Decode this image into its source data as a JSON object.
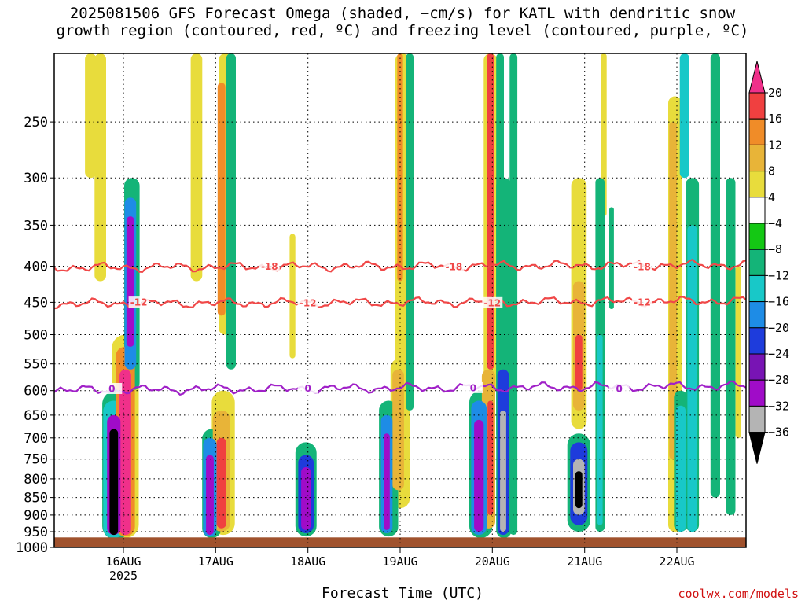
{
  "chart_data": {
    "type": "heatmap",
    "title": "2025081506 GFS Forecast Omega (shaded, −cm/s) for KATL with dendritic snow\ngrowth region (contoured, red, ºC) and freezing level (contoured, purple, ºC)",
    "xlabel": "Forecast Time (UTC)",
    "ylabel": "",
    "credit": "coolwx.com/models",
    "y_axis": {
      "scale": "pressure (hPa), inverted",
      "ticks": [
        250,
        300,
        350,
        400,
        450,
        500,
        550,
        600,
        650,
        700,
        750,
        800,
        850,
        900,
        950,
        1000
      ],
      "range": [
        200,
        1000
      ]
    },
    "x_axis": {
      "ticks": [
        {
          "label": "16AUG",
          "sub": "2025",
          "hour": 18
        },
        {
          "label": "17AUG",
          "sub": "",
          "hour": 42
        },
        {
          "label": "18AUG",
          "sub": "",
          "hour": 66
        },
        {
          "label": "19AUG",
          "sub": "",
          "hour": 90
        },
        {
          "label": "20AUG",
          "sub": "",
          "hour": 114
        },
        {
          "label": "21AUG",
          "sub": "",
          "hour": 138
        },
        {
          "label": "22AUG",
          "sub": "",
          "hour": 162
        }
      ],
      "range_hours": [
        0,
        180
      ]
    },
    "colorbar": {
      "labels": [
        "20",
        "16",
        "12",
        "8",
        "4",
        "−4",
        "−8",
        "−12",
        "−16",
        "−20",
        "−24",
        "−28",
        "−32",
        "−36"
      ],
      "colors": [
        "#f0308a",
        "#f04040",
        "#f08c28",
        "#e8b438",
        "#e8dc3c",
        "#ffffff",
        "#14c814",
        "#14b478",
        "#18c8c8",
        "#1e8ce6",
        "#1e3cdc",
        "#7814b4",
        "#a00cc8",
        "#b4b4b4",
        "#000000"
      ]
    },
    "contours": [
      {
        "label": "-18",
        "color": "#f04848",
        "pressure": 400,
        "label_hours": [
          56,
          104,
          153
        ]
      },
      {
        "label": "-12",
        "color": "#f04848",
        "pressure": 450,
        "label_hours": [
          22,
          66,
          114,
          153
        ]
      },
      {
        "label": "0",
        "color": "#a020c8",
        "pressure": 595,
        "label_hours": [
          15,
          66,
          109,
          147
        ]
      }
    ],
    "ground_color": "#a0522d",
    "cells": [
      {
        "hour": 15.5,
        "p1": 680,
        "p2": 960,
        "w": 2.2,
        "v": -36
      },
      {
        "hour": 15.5,
        "p1": 650,
        "p2": 960,
        "w": 3.5,
        "v": -28
      },
      {
        "hour": 15.5,
        "p1": 620,
        "p2": 970,
        "w": 5.5,
        "v": -12
      },
      {
        "hour": 16.0,
        "p1": 600,
        "p2": 975,
        "w": 7,
        "v": -8
      },
      {
        "hour": 18.5,
        "p1": 560,
        "p2": 960,
        "w": 3,
        "v": 20
      },
      {
        "hour": 18.5,
        "p1": 520,
        "p2": 965,
        "w": 5,
        "v": 12
      },
      {
        "hour": 18.5,
        "p1": 500,
        "p2": 970,
        "w": 7,
        "v": 4
      },
      {
        "hour": 19.8,
        "p1": 340,
        "p2": 520,
        "w": 2,
        "v": -28
      },
      {
        "hour": 19.8,
        "p1": 320,
        "p2": 560,
        "w": 3,
        "v": -16
      },
      {
        "hour": 20.2,
        "p1": 300,
        "p2": 600,
        "w": 4,
        "v": -8
      },
      {
        "hour": 12.0,
        "p1": 200,
        "p2": 420,
        "w": 3,
        "v": 4
      },
      {
        "hour": 9.5,
        "p1": 200,
        "p2": 300,
        "w": 3,
        "v": 4
      },
      {
        "hour": 40.5,
        "p1": 740,
        "p2": 960,
        "w": 2,
        "v": -28
      },
      {
        "hour": 40.5,
        "p1": 700,
        "p2": 965,
        "w": 3.5,
        "v": -16
      },
      {
        "hour": 41.0,
        "p1": 680,
        "p2": 970,
        "w": 5,
        "v": -8
      },
      {
        "hour": 43.5,
        "p1": 700,
        "p2": 940,
        "w": 2.5,
        "v": 16
      },
      {
        "hour": 43.5,
        "p1": 640,
        "p2": 950,
        "w": 4.5,
        "v": 8
      },
      {
        "hour": 44.0,
        "p1": 600,
        "p2": 960,
        "w": 6,
        "v": 4
      },
      {
        "hour": 43.5,
        "p1": 220,
        "p2": 470,
        "w": 2,
        "v": 12
      },
      {
        "hour": 44.5,
        "p1": 200,
        "p2": 500,
        "w": 3.5,
        "v": 4
      },
      {
        "hour": 46.0,
        "p1": 200,
        "p2": 560,
        "w": 2.5,
        "v": -8
      },
      {
        "hour": 37.0,
        "p1": 200,
        "p2": 420,
        "w": 3,
        "v": 4
      },
      {
        "hour": 65.5,
        "p1": 770,
        "p2": 945,
        "w": 2.5,
        "v": -28
      },
      {
        "hour": 65.5,
        "p1": 740,
        "p2": 955,
        "w": 4,
        "v": -20
      },
      {
        "hour": 65.5,
        "p1": 710,
        "p2": 965,
        "w": 5.5,
        "v": -8
      },
      {
        "hour": 62.0,
        "p1": 360,
        "p2": 540,
        "w": 1.5,
        "v": 4
      },
      {
        "hour": 86.5,
        "p1": 690,
        "p2": 945,
        "w": 1.6,
        "v": -28
      },
      {
        "hour": 86.5,
        "p1": 650,
        "p2": 955,
        "w": 3,
        "v": -16
      },
      {
        "hour": 87.0,
        "p1": 620,
        "p2": 965,
        "w": 5,
        "v": -8
      },
      {
        "hour": 89.5,
        "p1": 560,
        "p2": 830,
        "w": 3,
        "v": 8
      },
      {
        "hour": 90.0,
        "p1": 540,
        "p2": 880,
        "w": 5,
        "v": 4
      },
      {
        "hour": 90.0,
        "p1": 200,
        "p2": 420,
        "w": 1.5,
        "v": 12
      },
      {
        "hour": 90.5,
        "p1": 200,
        "p2": 600,
        "w": 3.5,
        "v": 4
      },
      {
        "hour": 92.5,
        "p1": 200,
        "p2": 640,
        "w": 2,
        "v": -8
      },
      {
        "hour": 110.5,
        "p1": 660,
        "p2": 950,
        "w": 2.5,
        "v": -28
      },
      {
        "hour": 110.5,
        "p1": 620,
        "p2": 960,
        "w": 4,
        "v": -16
      },
      {
        "hour": 111.0,
        "p1": 600,
        "p2": 970,
        "w": 6,
        "v": -8
      },
      {
        "hour": 113.5,
        "p1": 620,
        "p2": 900,
        "w": 1.5,
        "v": 16
      },
      {
        "hour": 113.0,
        "p1": 560,
        "p2": 940,
        "w": 3.5,
        "v": 8
      },
      {
        "hour": 113.5,
        "p1": 200,
        "p2": 560,
        "w": 1.8,
        "v": 16
      },
      {
        "hour": 113.5,
        "p1": 200,
        "p2": 600,
        "w": 3.5,
        "v": 4
      },
      {
        "hour": 116.0,
        "p1": 200,
        "p2": 700,
        "w": 2,
        "v": -8
      },
      {
        "hour": 116.8,
        "p1": 640,
        "p2": 950,
        "w": 1.6,
        "v": -32
      },
      {
        "hour": 116.8,
        "p1": 560,
        "p2": 960,
        "w": 3,
        "v": -20
      },
      {
        "hour": 117.0,
        "p1": 300,
        "p2": 970,
        "w": 4,
        "v": -8
      },
      {
        "hour": 119.5,
        "p1": 200,
        "p2": 960,
        "w": 2,
        "v": -8
      },
      {
        "hour": 136.5,
        "p1": 780,
        "p2": 880,
        "w": 1.8,
        "v": -36
      },
      {
        "hour": 136.5,
        "p1": 750,
        "p2": 900,
        "w": 3,
        "v": -32
      },
      {
        "hour": 136.5,
        "p1": 710,
        "p2": 930,
        "w": 4.5,
        "v": -20
      },
      {
        "hour": 136.5,
        "p1": 690,
        "p2": 950,
        "w": 6,
        "v": -8
      },
      {
        "hour": 136.5,
        "p1": 500,
        "p2": 600,
        "w": 1.8,
        "v": 16
      },
      {
        "hour": 136.5,
        "p1": 420,
        "p2": 640,
        "w": 3,
        "v": 8
      },
      {
        "hour": 136.5,
        "p1": 300,
        "p2": 680,
        "w": 4,
        "v": 4
      },
      {
        "hour": 142.0,
        "p1": 300,
        "p2": 950,
        "w": 2.4,
        "v": -8
      },
      {
        "hour": 142.0,
        "p1": 500,
        "p2": 930,
        "w": 1.4,
        "v": -12
      },
      {
        "hour": 145.0,
        "p1": 330,
        "p2": 460,
        "w": 1.2,
        "v": -8
      },
      {
        "hour": 143.0,
        "p1": 200,
        "p2": 340,
        "w": 1.5,
        "v": 4
      },
      {
        "hour": 161.0,
        "p1": 250,
        "p2": 750,
        "w": 2,
        "v": 8
      },
      {
        "hour": 161.5,
        "p1": 230,
        "p2": 950,
        "w": 3.5,
        "v": 4
      },
      {
        "hour": 163.0,
        "p1": 630,
        "p2": 950,
        "w": 2.5,
        "v": -12
      },
      {
        "hour": 163.0,
        "p1": 600,
        "p2": 950,
        "w": 3.5,
        "v": -8
      },
      {
        "hour": 166.0,
        "p1": 350,
        "p2": 950,
        "w": 2.5,
        "v": -12
      },
      {
        "hour": 166.0,
        "p1": 300,
        "p2": 950,
        "w": 3.5,
        "v": -8
      },
      {
        "hour": 172.0,
        "p1": 200,
        "p2": 850,
        "w": 2.5,
        "v": -8
      },
      {
        "hour": 176.0,
        "p1": 300,
        "p2": 900,
        "w": 2.5,
        "v": -8
      },
      {
        "hour": 164.0,
        "p1": 200,
        "p2": 300,
        "w": 2.5,
        "v": -12
      },
      {
        "hour": 178.0,
        "p1": 400,
        "p2": 700,
        "w": 1.5,
        "v": 4
      }
    ]
  }
}
